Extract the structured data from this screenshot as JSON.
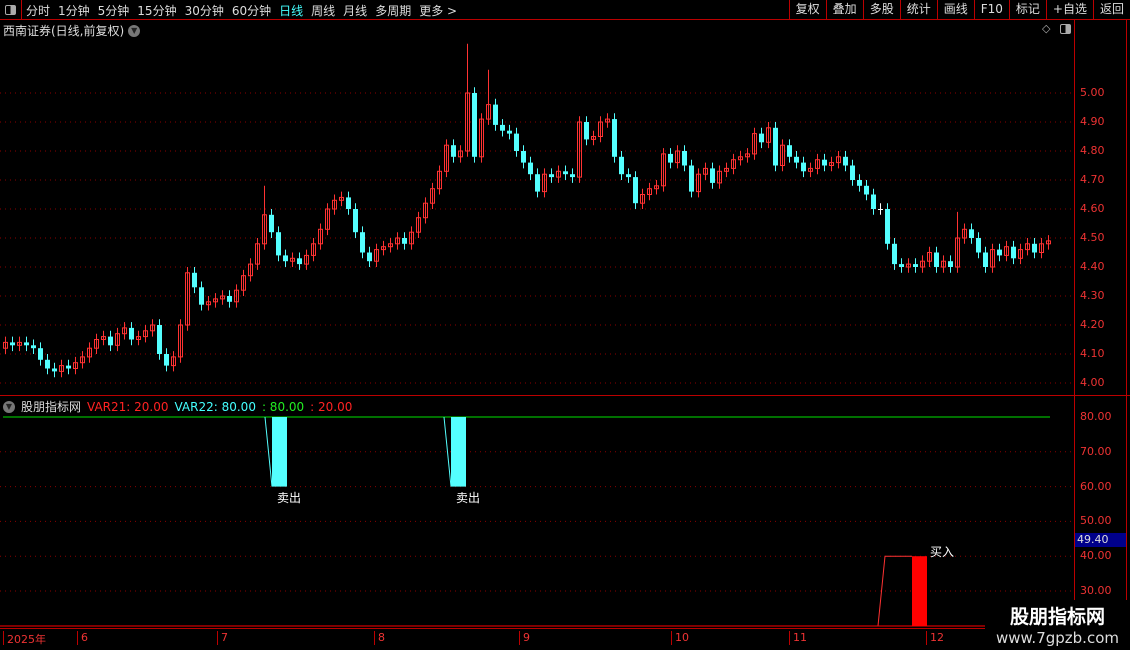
{
  "toolbar": {
    "periods": [
      "分时",
      "1分钟",
      "5分钟",
      "15分钟",
      "30分钟",
      "60分钟",
      "日线",
      "周线",
      "月线",
      "多周期",
      "更多 >"
    ],
    "active": "日线",
    "buttons": [
      "复权",
      "叠加",
      "多股",
      "统计",
      "画线",
      "F10",
      "标记",
      "+自选",
      "返回"
    ]
  },
  "chart_title": "西南证券(日线,前复权)",
  "indicator": {
    "name": "股朋指标网",
    "var21_label": "VAR21: 20.00",
    "var22_label": "VAR22: 80.00",
    "v3": ": 80.00",
    "v4": ": 20.00",
    "sell_label": "卖出",
    "buy_label": "买入",
    "current_value": "49.40"
  },
  "watermark": {
    "line1": "股朋指标网",
    "line2": "www.7gpzb.com"
  },
  "colors": {
    "up": "#ff3232",
    "down": "#54ffff",
    "flat": "#ffffff",
    "grid": "#8b0000",
    "line80": "#00e000"
  },
  "chart_data": [
    {
      "type": "candlestick",
      "price_ticks": [
        "5.00",
        "4.90",
        "4.80",
        "4.70",
        "4.60",
        "4.50",
        "4.40",
        "4.30",
        "4.20",
        "4.10",
        "4.00"
      ],
      "date_labels": [
        "2025年",
        "6",
        "7",
        "8",
        "9",
        "10",
        "11",
        "12"
      ],
      "open": [
        4.12,
        4.14,
        4.13,
        4.14,
        4.13,
        4.12,
        4.08,
        4.05,
        4.04,
        4.06,
        4.05,
        4.07,
        4.09,
        4.12,
        4.15,
        4.16,
        4.13,
        4.17,
        4.19,
        4.15,
        4.16,
        4.18,
        4.2,
        4.1,
        4.06,
        4.09,
        4.2,
        4.38,
        4.33,
        4.27,
        4.28,
        4.29,
        4.3,
        4.28,
        4.32,
        4.37,
        4.41,
        4.48,
        4.58,
        4.52,
        4.44,
        4.42,
        4.43,
        4.41,
        4.44,
        4.48,
        4.53,
        4.6,
        4.63,
        4.64,
        4.6,
        4.52,
        4.45,
        4.42,
        4.46,
        4.47,
        4.48,
        4.5,
        4.48,
        4.52,
        4.57,
        4.62,
        4.67,
        4.73,
        4.82,
        4.78,
        4.8,
        5.0,
        4.78,
        4.91,
        4.96,
        4.89,
        4.87,
        4.86,
        4.8,
        4.76,
        4.72,
        4.66,
        4.72,
        4.71,
        4.73,
        4.72,
        4.71,
        4.9,
        4.84,
        4.85,
        4.9,
        4.91,
        4.78,
        4.72,
        4.71,
        4.62,
        4.65,
        4.67,
        4.68,
        4.79,
        4.76,
        4.8,
        4.75,
        4.66,
        4.72,
        4.74,
        4.69,
        4.73,
        4.74,
        4.77,
        4.78,
        4.79,
        4.86,
        4.83,
        4.88,
        4.75,
        4.82,
        4.78,
        4.76,
        4.73,
        4.74,
        4.77,
        4.75,
        4.76,
        4.78,
        4.75,
        4.7,
        4.68,
        4.65,
        4.6,
        4.6,
        4.48,
        4.41,
        4.4,
        4.41,
        4.4,
        4.42,
        4.45,
        4.4,
        4.42,
        4.4,
        4.5,
        4.53,
        4.5,
        4.45,
        4.4,
        4.46,
        4.44,
        4.47,
        4.43,
        4.46,
        4.48,
        4.45,
        4.48
      ],
      "close": [
        4.14,
        4.13,
        4.14,
        4.13,
        4.12,
        4.08,
        4.05,
        4.04,
        4.06,
        4.05,
        4.07,
        4.09,
        4.12,
        4.15,
        4.16,
        4.13,
        4.17,
        4.19,
        4.15,
        4.16,
        4.18,
        4.2,
        4.1,
        4.06,
        4.09,
        4.2,
        4.38,
        4.33,
        4.27,
        4.28,
        4.29,
        4.3,
        4.28,
        4.32,
        4.37,
        4.41,
        4.48,
        4.58,
        4.52,
        4.44,
        4.42,
        4.43,
        4.41,
        4.44,
        4.48,
        4.53,
        4.6,
        4.63,
        4.64,
        4.6,
        4.52,
        4.45,
        4.42,
        4.46,
        4.47,
        4.48,
        4.5,
        4.48,
        4.52,
        4.57,
        4.62,
        4.67,
        4.73,
        4.82,
        4.78,
        4.8,
        5.0,
        4.78,
        4.91,
        4.96,
        4.89,
        4.87,
        4.86,
        4.8,
        4.76,
        4.72,
        4.66,
        4.72,
        4.71,
        4.73,
        4.72,
        4.71,
        4.9,
        4.84,
        4.85,
        4.9,
        4.91,
        4.78,
        4.72,
        4.71,
        4.62,
        4.65,
        4.67,
        4.68,
        4.79,
        4.76,
        4.8,
        4.75,
        4.66,
        4.72,
        4.74,
        4.69,
        4.73,
        4.74,
        4.77,
        4.78,
        4.79,
        4.86,
        4.83,
        4.88,
        4.75,
        4.82,
        4.78,
        4.76,
        4.73,
        4.74,
        4.77,
        4.75,
        4.76,
        4.78,
        4.75,
        4.7,
        4.68,
        4.65,
        4.6,
        4.6,
        4.48,
        4.41,
        4.4,
        4.41,
        4.4,
        4.42,
        4.45,
        4.4,
        4.42,
        4.4,
        4.5,
        4.53,
        4.5,
        4.45,
        4.4,
        4.46,
        4.44,
        4.47,
        4.43,
        4.46,
        4.48,
        4.45,
        4.48,
        4.49
      ],
      "notable_highs": {
        "66": 5.17,
        "69": 5.08,
        "37": 4.68,
        "136": 4.59
      },
      "indicator_ticks": [
        "80.00",
        "70.00",
        "60.00",
        "50.00",
        "40.00",
        "30.00"
      ]
    }
  ]
}
